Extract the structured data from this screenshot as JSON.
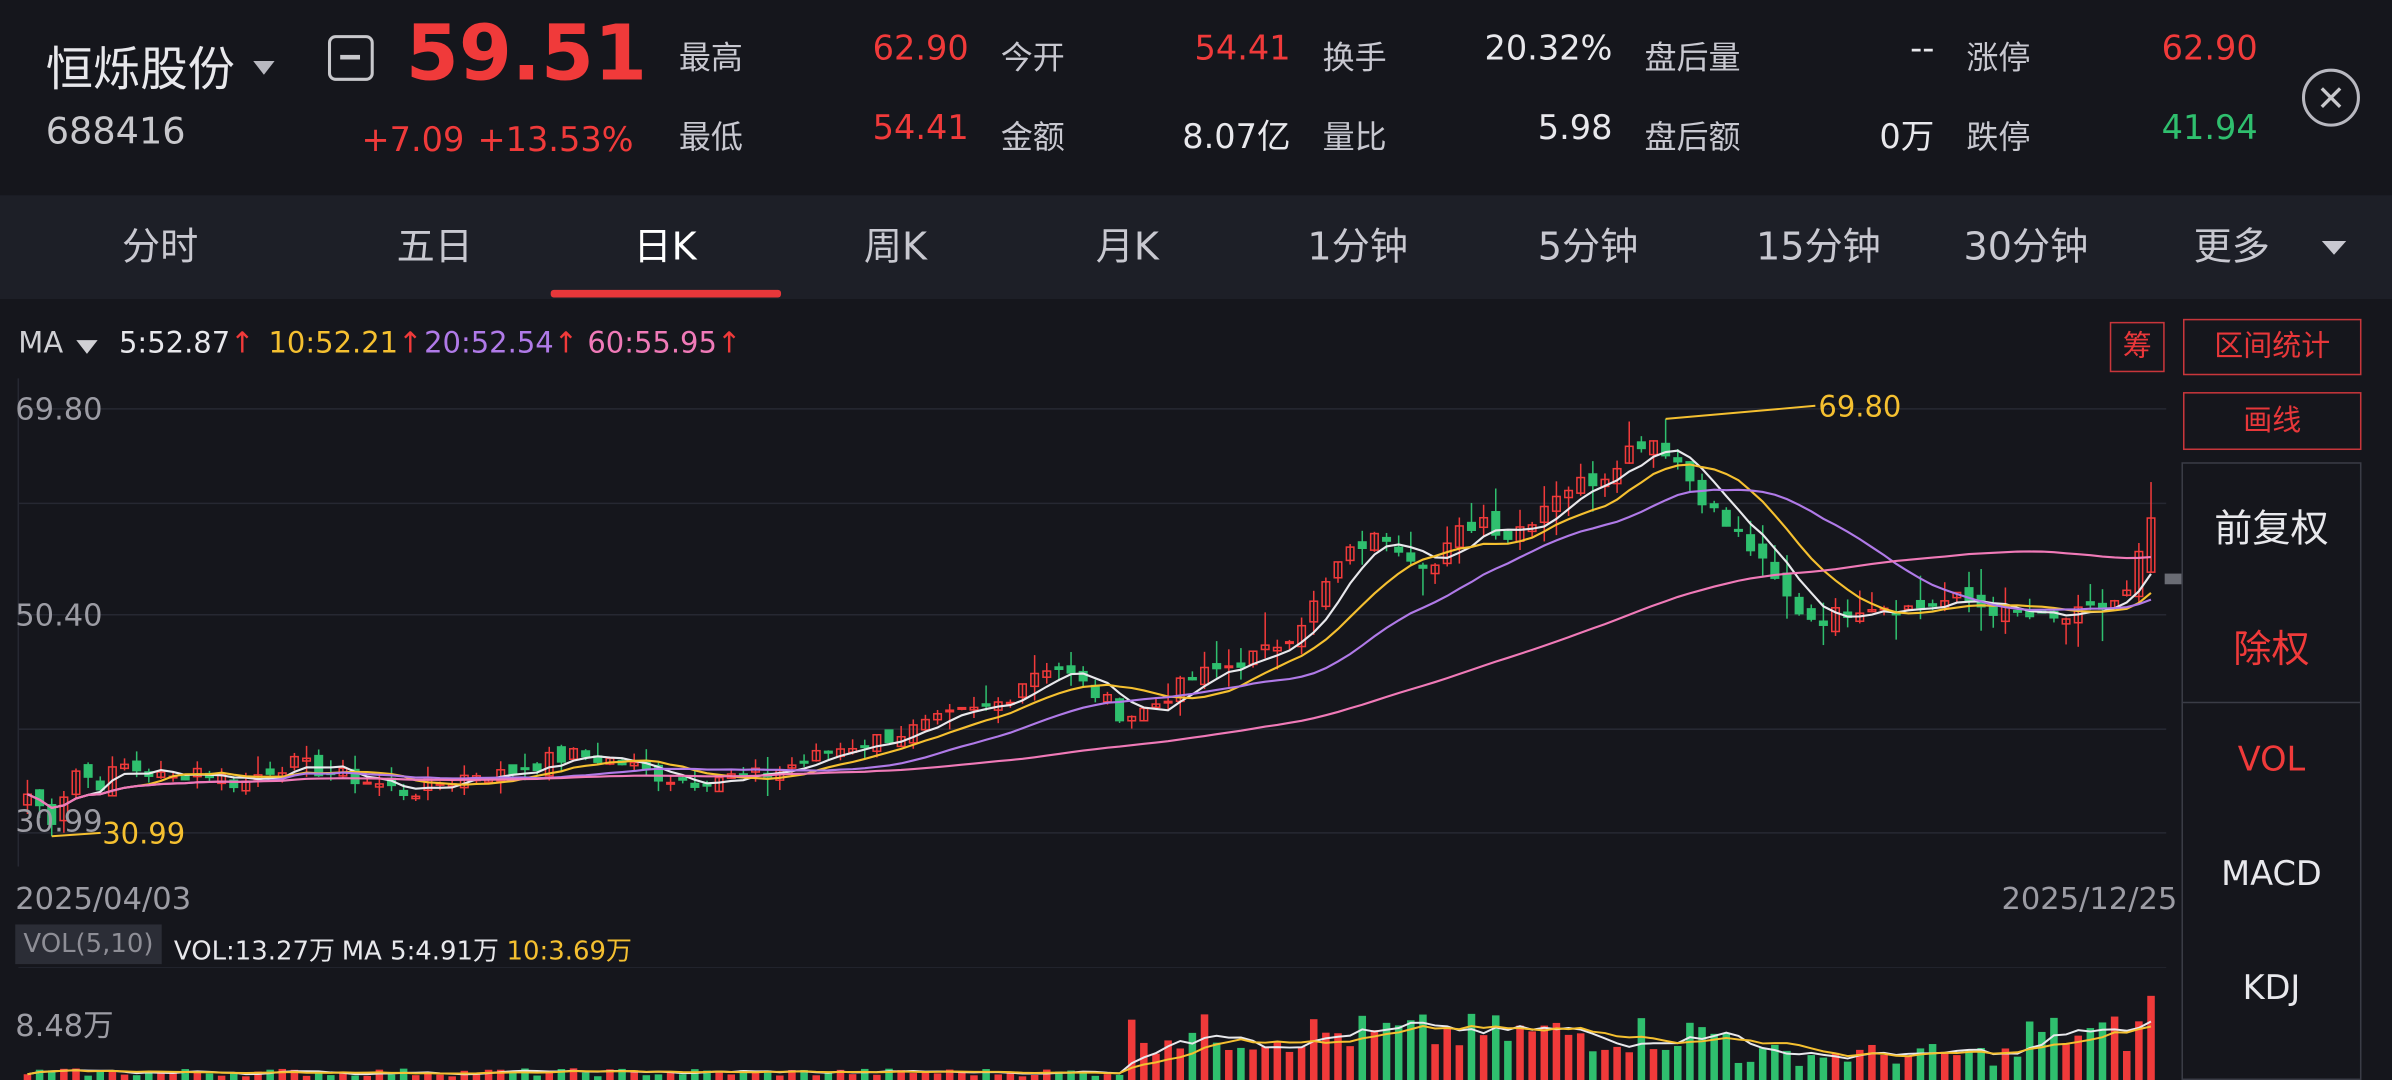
{
  "header": {
    "stock_name": "恒烁股份",
    "stock_code": "688416",
    "price": "59.51",
    "change": "+7.09",
    "change_pct": "+13.53%",
    "quote_rows": [
      [
        {
          "label": "最高",
          "value": "62.90",
          "tone": "red"
        },
        {
          "label": "今开",
          "value": "54.41",
          "tone": "red"
        },
        {
          "label": "换手",
          "value": "20.32%",
          "tone": "white"
        },
        {
          "label": "盘后量",
          "value": "--",
          "tone": "white"
        },
        {
          "label": "涨停",
          "value": "62.90",
          "tone": "red"
        }
      ],
      [
        {
          "label": "最低",
          "value": "54.41",
          "tone": "red"
        },
        {
          "label": "金额",
          "value": "8.07亿",
          "tone": "white"
        },
        {
          "label": "量比",
          "value": "5.98",
          "tone": "white"
        },
        {
          "label": "盘后额",
          "value": "0万",
          "tone": "white"
        },
        {
          "label": "跌停",
          "value": "41.94",
          "tone": "green"
        }
      ]
    ]
  },
  "tabs": [
    "分时",
    "五日",
    "日K",
    "周K",
    "月K",
    "1分钟",
    "5分钟",
    "15分钟",
    "30分钟",
    "更多"
  ],
  "active_tab": "日K",
  "ma_legend": {
    "label": "MA",
    "items": [
      {
        "text": "5:52.87",
        "color": "#e8e8ec",
        "arrow": "↑"
      },
      {
        "text": "10:52.21",
        "color": "#f5c030",
        "arrow": "↑"
      },
      {
        "text": "20:52.54",
        "color": "#b07ae8",
        "arrow": "↑"
      },
      {
        "text": "60:55.95",
        "color": "#f07ab8",
        "arrow": "↑"
      }
    ]
  },
  "side_buttons": {
    "chip": "筹",
    "range_stats": "区间统计",
    "draw_line": "画线",
    "forward_adjust": "前复权",
    "ex_rights": "除权",
    "vol": "VOL",
    "macd": "MACD",
    "kdj": "KDJ"
  },
  "colors": {
    "up": "#f03a3a",
    "down": "#2fbf6e",
    "ma5": "#e8e8ec",
    "ma10": "#f5c030",
    "ma20": "#b07ae8",
    "ma60": "#f07ab8",
    "background": "#15161c"
  },
  "icons": {
    "close": "close-icon",
    "name_dropdown": "caret-down-icon",
    "collapse": "minus-square-icon"
  },
  "volume_legend": {
    "tag": "VOL(5,10)",
    "vol": "VOL:13.27万",
    "ma5": "MA 5:4.91万",
    "ma10": "10:3.69万",
    "axis_max": "8.48万"
  },
  "chart_data": {
    "type": "candlestick",
    "x_start_label": "2025/04/03",
    "x_end_label": "2025/12/25",
    "y_tick_labels": [
      "69.80",
      "50.40",
      "30.99"
    ],
    "ylim": [
      30.99,
      69.8
    ],
    "annotations": {
      "high": "69.80",
      "low": "30.99"
    },
    "moving_averages": [
      "MA5",
      "MA10",
      "MA20",
      "MA60"
    ],
    "close_path": [
      33.5,
      31.2,
      35.8,
      34.5,
      36.2,
      35.6,
      34.8,
      36.0,
      35.2,
      34.4,
      35.8,
      36.4,
      36.0,
      35.3,
      34.9,
      34.2,
      33.6,
      34.4,
      35.0,
      35.6,
      35.3,
      36.2,
      36.8,
      37.2,
      36.9,
      36.4,
      35.6,
      35.0,
      34.8,
      35.2,
      35.0,
      35.4,
      36.2,
      37.0,
      37.8,
      38.4,
      38.9,
      39.5,
      40.2,
      41.0,
      41.4,
      42.4,
      44.9,
      45.8,
      44.2,
      42.6,
      40.8,
      41.6,
      43.2,
      44.6,
      45.3,
      46.2,
      47.0,
      48.8,
      51.6,
      55.4,
      57.2,
      57.9,
      56.1,
      55.0,
      58.2,
      59.6,
      57.8,
      59.4,
      61.9,
      62.8,
      63.4,
      65.9,
      67.2,
      65.4,
      62.1,
      59.2,
      57.4,
      54.2,
      51.2,
      49.9,
      50.6,
      51.4,
      51.3,
      51.0,
      51.5,
      51.9,
      51.2,
      50.6,
      50.2,
      49.8,
      50.4,
      51.1,
      52.4,
      59.51
    ]
  }
}
